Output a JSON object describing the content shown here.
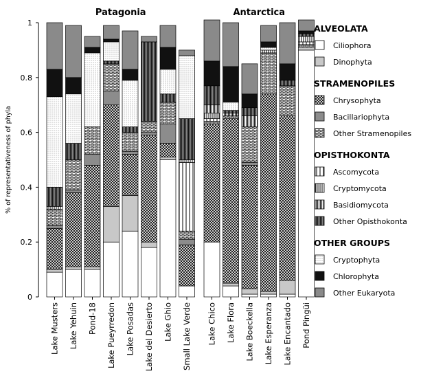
{
  "chart_data": {
    "type": "bar",
    "stacked": true,
    "ylabel": "% of representativeness of phyla",
    "ylim": [
      0,
      1
    ],
    "yticks": [
      "0",
      "0.2",
      "0.4",
      "0.6",
      "0.8",
      "1"
    ],
    "groups": [
      {
        "title": "Patagonia",
        "categories": [
          "Lake Musters",
          "Lake Yehuin",
          "Pond-18",
          "Lake Pueyrredon",
          "Lake Posadas",
          "Lake del Desierto",
          "Lake Ghio",
          "Small Lake Verde"
        ]
      },
      {
        "title": "Antarctica",
        "categories": [
          "Lake Chico",
          "Lake Flora",
          "Lake Boeckella",
          "Lake Esperanza",
          "Lake Encantado",
          "Pond Pingüi"
        ]
      }
    ],
    "categories": [
      "Lake Musters",
      "Lake Yehuin",
      "Pond-18",
      "Lake Pueyrredon",
      "Lake Posadas",
      "Lake del Desierto",
      "Lake Ghio",
      "Small Lake Verde",
      "Lake Chico",
      "Lake Flora",
      "Lake Boeckella",
      "Lake Esperanza",
      "Lake Encantado",
      "Pond Pingüi"
    ],
    "series": [
      {
        "name": "Ciliophora",
        "pattern": "white",
        "values": [
          0.09,
          0.1,
          0.1,
          0.2,
          0.24,
          0.18,
          0.5,
          0.04,
          0.2,
          0.04,
          0.01,
          0.01,
          0.01,
          0.9
        ]
      },
      {
        "name": "Dinophyta",
        "pattern": "lightgray",
        "values": [
          0.01,
          0.01,
          0.01,
          0.13,
          0.13,
          0.02,
          0.01,
          0.0,
          0.0,
          0.01,
          0.02,
          0.01,
          0.05,
          0.01
        ]
      },
      {
        "name": "Chrysophyta",
        "pattern": "crosshatch",
        "values": [
          0.15,
          0.27,
          0.37,
          0.37,
          0.15,
          0.39,
          0.05,
          0.15,
          0.43,
          0.6,
          0.45,
          0.72,
          0.6,
          0.0
        ]
      },
      {
        "name": "Bacillariophyta",
        "pattern": "midgray",
        "values": [
          0.01,
          0.01,
          0.04,
          0.05,
          0.01,
          0.01,
          0.07,
          0.02,
          0.0,
          0.0,
          0.01,
          0.0,
          0.0,
          0.0
        ]
      },
      {
        "name": "Other Stramenopiles",
        "pattern": "bricks",
        "values": [
          0.06,
          0.11,
          0.1,
          0.1,
          0.07,
          0.04,
          0.08,
          0.03,
          0.01,
          0.01,
          0.13,
          0.15,
          0.11,
          0.01
        ]
      },
      {
        "name": "Ascomycota",
        "pattern": "vlines-wide",
        "values": [
          0.0,
          0.0,
          0.0,
          0.0,
          0.0,
          0.0,
          0.0,
          0.25,
          0.01,
          0.0,
          0.0,
          0.0,
          0.0,
          0.01
        ]
      },
      {
        "name": "Cryptomycota",
        "pattern": "vlines-med",
        "values": [
          0.01,
          0.0,
          0.0,
          0.0,
          0.0,
          0.0,
          0.0,
          0.01,
          0.02,
          0.0,
          0.0,
          0.01,
          0.0,
          0.02
        ]
      },
      {
        "name": "Basidiomycota",
        "pattern": "vlines-dense",
        "values": [
          0.0,
          0.0,
          0.0,
          0.0,
          0.0,
          0.0,
          0.0,
          0.0,
          0.03,
          0.01,
          0.04,
          0.0,
          0.0,
          0.0
        ]
      },
      {
        "name": "Other Opisthokonta",
        "pattern": "vlines-black",
        "values": [
          0.07,
          0.06,
          0.0,
          0.01,
          0.02,
          0.29,
          0.03,
          0.15,
          0.07,
          0.01,
          0.03,
          0.0,
          0.02,
          0.01
        ]
      },
      {
        "name": "Cryptophyta",
        "pattern": "dots",
        "values": [
          0.33,
          0.18,
          0.27,
          0.07,
          0.17,
          0.0,
          0.09,
          0.23,
          0.0,
          0.03,
          0.0,
          0.01,
          0.0,
          0.0
        ]
      },
      {
        "name": "Chlorophyta",
        "pattern": "black",
        "values": [
          0.1,
          0.06,
          0.02,
          0.01,
          0.04,
          0.0,
          0.08,
          0.0,
          0.09,
          0.13,
          0.05,
          0.02,
          0.06,
          0.01
        ]
      },
      {
        "name": "Other Eukaryota",
        "pattern": "darkgray",
        "values": [
          0.17,
          0.19,
          0.04,
          0.05,
          0.14,
          0.02,
          0.08,
          0.02,
          0.15,
          0.16,
          0.11,
          0.06,
          0.15,
          0.04
        ]
      }
    ],
    "legend": {
      "placement": "right",
      "groups": [
        {
          "title": "ALVEOLATA",
          "items": [
            "Ciliophora",
            "Dinophyta"
          ]
        },
        {
          "title": "STRAMENOPILES",
          "items": [
            "Chrysophyta",
            "Bacillariophyta",
            "Other Stramenopiles"
          ]
        },
        {
          "title": "OPISTHOKONTA",
          "items": [
            "Ascomycota",
            "Cryptomycota",
            "Basidiomycota",
            "Other Opisthokonta"
          ]
        },
        {
          "title": "OTHER GROUPS",
          "items": [
            "Cryptophyta",
            "Chlorophyta",
            "Other Eukaryota"
          ]
        }
      ]
    },
    "colors": {
      "white": "#ffffff",
      "lightgray": "#c8c8c8",
      "midgray": "#8c8c8c",
      "darkgray": "#8a8a8a",
      "black": "#111111",
      "outline": "#000000"
    }
  }
}
